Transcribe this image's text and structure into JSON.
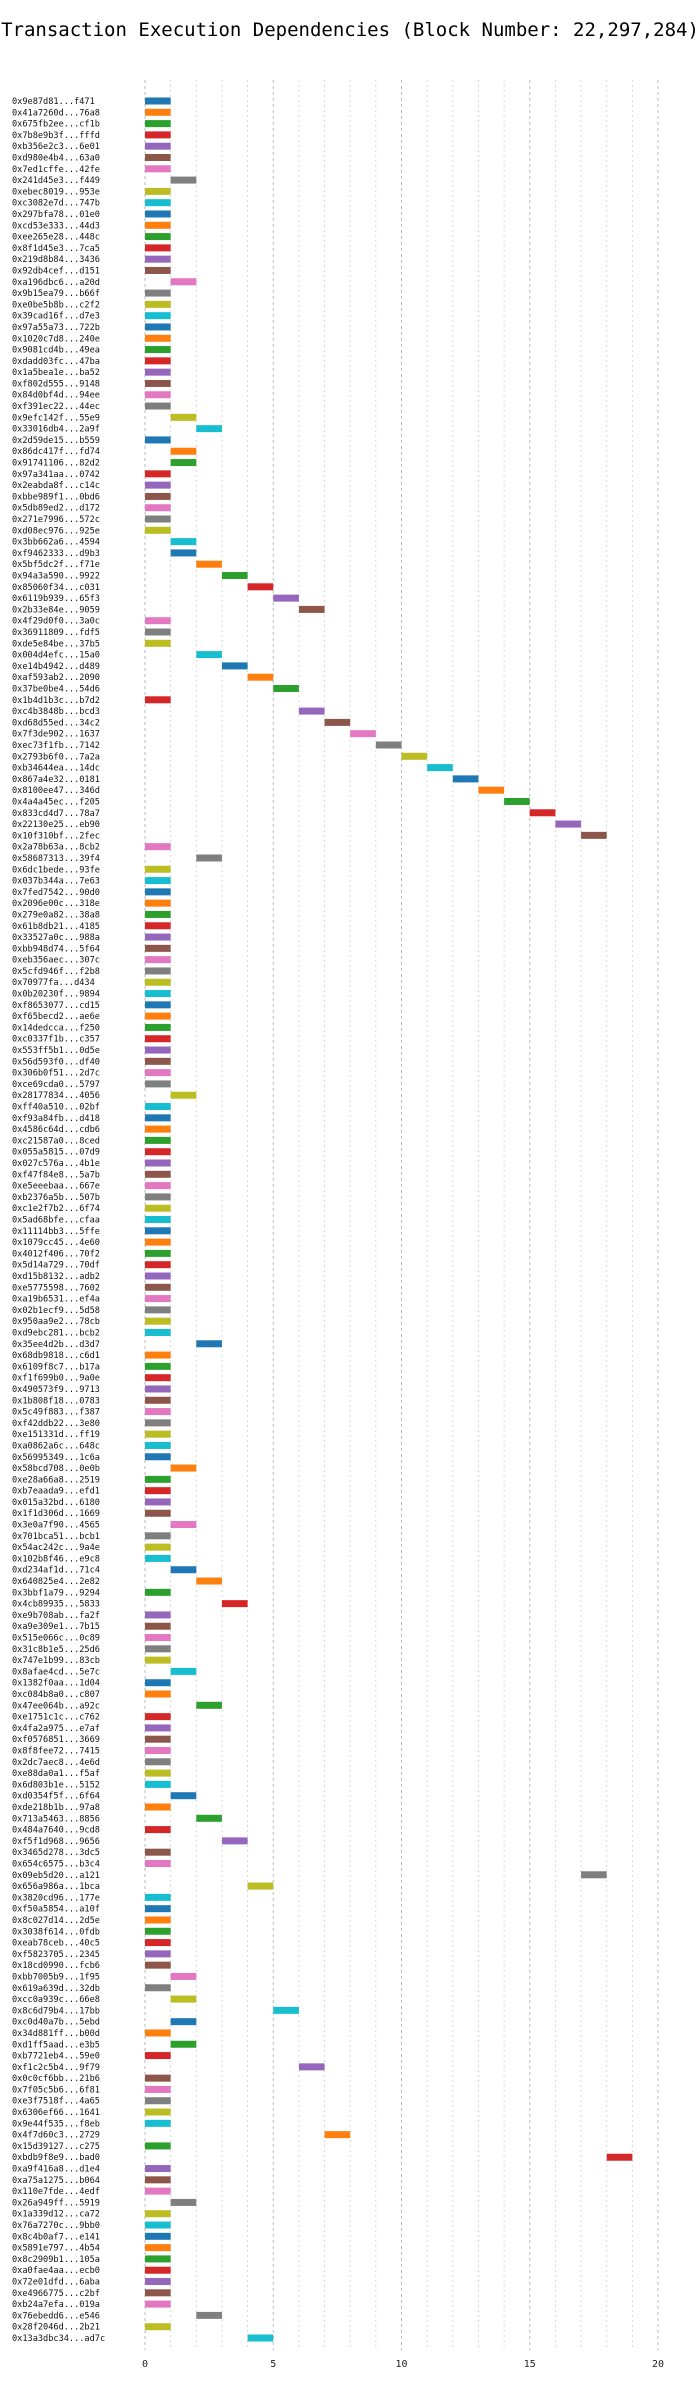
{
  "chart_data": {
    "type": "bar",
    "orientation": "horizontal-gantt",
    "title": "Transaction Execution Dependencies (Block Number: 22,297,284)",
    "xlabel": "",
    "ylabel": "",
    "xlim": [
      0,
      20
    ],
    "xticks": [
      0,
      5,
      10,
      15,
      20
    ],
    "grid": true,
    "palette": [
      "#1f77b4",
      "#ff7f0e",
      "#2ca02c",
      "#d62728",
      "#9467bd",
      "#8c564b",
      "#e377c2",
      "#7f7f7f",
      "#bcbd22",
      "#17becf"
    ],
    "transactions": [
      {
        "label": "0x9e87d81...f471",
        "start": 0,
        "color": 0
      },
      {
        "label": "0x41a7260d...76a8",
        "start": 0,
        "color": 1
      },
      {
        "label": "0x675fb2ee...cf1b",
        "start": 0,
        "color": 2
      },
      {
        "label": "0x7b8e9b3f...fffd",
        "start": 0,
        "color": 3
      },
      {
        "label": "0xb356e2c3...6e01",
        "start": 0,
        "color": 4
      },
      {
        "label": "0xd980e4b4...63a0",
        "start": 0,
        "color": 5
      },
      {
        "label": "0x7ed1cffe...42fe",
        "start": 0,
        "color": 6
      },
      {
        "label": "0x241d45e3...f449",
        "start": 1,
        "color": 7
      },
      {
        "label": "0xebec8019...953e",
        "start": 0,
        "color": 8
      },
      {
        "label": "0xc3082e7d...747b",
        "start": 0,
        "color": 9
      },
      {
        "label": "0x297bfa78...01e0",
        "start": 0,
        "color": 0
      },
      {
        "label": "0xcd53e333...44d3",
        "start": 0,
        "color": 1
      },
      {
        "label": "0xee265e28...448c",
        "start": 0,
        "color": 2
      },
      {
        "label": "0x8f1d45e3...7ca5",
        "start": 0,
        "color": 3
      },
      {
        "label": "0x219d8b84...3436",
        "start": 0,
        "color": 4
      },
      {
        "label": "0x92db4cef...d151",
        "start": 0,
        "color": 5
      },
      {
        "label": "0xa196dbc6...a20d",
        "start": 1,
        "color": 6
      },
      {
        "label": "0x9b15ea79...b66f",
        "start": 0,
        "color": 7
      },
      {
        "label": "0xe0be5b8b...c2f2",
        "start": 0,
        "color": 8
      },
      {
        "label": "0x39cad16f...d7e3",
        "start": 0,
        "color": 9
      },
      {
        "label": "0x97a55a73...722b",
        "start": 0,
        "color": 0
      },
      {
        "label": "0x1020c7d8...240e",
        "start": 0,
        "color": 1
      },
      {
        "label": "0x9081cd4b...49ea",
        "start": 0,
        "color": 2
      },
      {
        "label": "0xdadd03fc...47ba",
        "start": 0,
        "color": 3
      },
      {
        "label": "0x1a5bea1e...ba52",
        "start": 0,
        "color": 4
      },
      {
        "label": "0xf802d555...9148",
        "start": 0,
        "color": 5
      },
      {
        "label": "0x84d0bf4d...94ee",
        "start": 0,
        "color": 6
      },
      {
        "label": "0xf391ec22...44ec",
        "start": 0,
        "color": 7
      },
      {
        "label": "0x9efc142f...55e9",
        "start": 1,
        "color": 8
      },
      {
        "label": "0x33016db4...2a9f",
        "start": 2,
        "color": 9
      },
      {
        "label": "0x2d59de15...b559",
        "start": 0,
        "color": 0
      },
      {
        "label": "0x86dc417f...fd74",
        "start": 1,
        "color": 1
      },
      {
        "label": "0x91741106...82d2",
        "start": 1,
        "color": 2
      },
      {
        "label": "0x97a341aa...0742",
        "start": 0,
        "color": 3
      },
      {
        "label": "0x2eabda8f...c14c",
        "start": 0,
        "color": 4
      },
      {
        "label": "0xbbe989f1...0bd6",
        "start": 0,
        "color": 5
      },
      {
        "label": "0x5db89ed2...d172",
        "start": 0,
        "color": 6
      },
      {
        "label": "0x271e7996...572c",
        "start": 0,
        "color": 7
      },
      {
        "label": "0xd08ec976...925e",
        "start": 0,
        "color": 8
      },
      {
        "label": "0x3bb662a6...4594",
        "start": 1,
        "color": 9
      },
      {
        "label": "0xf9462333...d9b3",
        "start": 1,
        "color": 0
      },
      {
        "label": "0x5bf5dc2f...f71e",
        "start": 2,
        "color": 1
      },
      {
        "label": "0x94a3a590...9922",
        "start": 3,
        "color": 2
      },
      {
        "label": "0x85060f34...c031",
        "start": 4,
        "color": 3
      },
      {
        "label": "0x6119b939...65f3",
        "start": 5,
        "color": 4
      },
      {
        "label": "0x2b33e84e...9059",
        "start": 6,
        "color": 5
      },
      {
        "label": "0x4f29d0f0...3a0c",
        "start": 0,
        "color": 6
      },
      {
        "label": "0x36911809...fdf5",
        "start": 0,
        "color": 7
      },
      {
        "label": "0xde5e84be...37b5",
        "start": 0,
        "color": 8
      },
      {
        "label": "0x004d4efc...15a0",
        "start": 2,
        "color": 9
      },
      {
        "label": "0xe14b4942...d489",
        "start": 3,
        "color": 0
      },
      {
        "label": "0xaf593ab2...2090",
        "start": 4,
        "color": 1
      },
      {
        "label": "0x37be0be4...54d6",
        "start": 5,
        "color": 2
      },
      {
        "label": "0x1b4d1b3c...b7d2",
        "start": 0,
        "color": 3
      },
      {
        "label": "0xc4b3848b...bcd3",
        "start": 6,
        "color": 4
      },
      {
        "label": "0xd68d55ed...34c2",
        "start": 7,
        "color": 5
      },
      {
        "label": "0x7f3de902...1637",
        "start": 8,
        "color": 6
      },
      {
        "label": "0xec73f1fb...7142",
        "start": 9,
        "color": 7
      },
      {
        "label": "0x2793b6f0...7a2a",
        "start": 10,
        "color": 8
      },
      {
        "label": "0xb34644ea...14dc",
        "start": 11,
        "color": 9
      },
      {
        "label": "0x867a4e32...0181",
        "start": 12,
        "color": 0
      },
      {
        "label": "0x8100ee47...346d",
        "start": 13,
        "color": 1
      },
      {
        "label": "0x4a4a45ec...f205",
        "start": 14,
        "color": 2
      },
      {
        "label": "0x833cd4d7...78a7",
        "start": 15,
        "color": 3
      },
      {
        "label": "0x22130e25...eb90",
        "start": 16,
        "color": 4
      },
      {
        "label": "0x10f310bf...2fec",
        "start": 17,
        "color": 5
      },
      {
        "label": "0x2a78b63a...8cb2",
        "start": 0,
        "color": 6
      },
      {
        "label": "0x58687313...39f4",
        "start": 2,
        "color": 7
      },
      {
        "label": "0x6dc1bede...93fe",
        "start": 0,
        "color": 8
      },
      {
        "label": "0x037b344a...7e63",
        "start": 0,
        "color": 9
      },
      {
        "label": "0x7fed7542...90d0",
        "start": 0,
        "color": 0
      },
      {
        "label": "0x2096e00c...318e",
        "start": 0,
        "color": 1
      },
      {
        "label": "0x279e0a82...38a8",
        "start": 0,
        "color": 2
      },
      {
        "label": "0x61b8db21...4185",
        "start": 0,
        "color": 3
      },
      {
        "label": "0x33527a0c...988a",
        "start": 0,
        "color": 4
      },
      {
        "label": "0xbb948d74...5f64",
        "start": 0,
        "color": 5
      },
      {
        "label": "0xeb356aec...307c",
        "start": 0,
        "color": 6
      },
      {
        "label": "0x5cfd946f...f2b8",
        "start": 0,
        "color": 7
      },
      {
        "label": "0x70977fa...d434",
        "start": 0,
        "color": 8
      },
      {
        "label": "0x0b20230f...9894",
        "start": 0,
        "color": 9
      },
      {
        "label": "0xf8653077...cd15",
        "start": 0,
        "color": 0
      },
      {
        "label": "0xf65becd2...ae6e",
        "start": 0,
        "color": 1
      },
      {
        "label": "0x14dedcca...f250",
        "start": 0,
        "color": 2
      },
      {
        "label": "0xc0337f1b...c357",
        "start": 0,
        "color": 3
      },
      {
        "label": "0x553ff5b1...0d5e",
        "start": 0,
        "color": 4
      },
      {
        "label": "0x56d593f0...df40",
        "start": 0,
        "color": 5
      },
      {
        "label": "0x306b0f51...2d7c",
        "start": 0,
        "color": 6
      },
      {
        "label": "0xce69cda0...5797",
        "start": 0,
        "color": 7
      },
      {
        "label": "0x28177834...4056",
        "start": 1,
        "color": 8
      },
      {
        "label": "0xff40a510...02bf",
        "start": 0,
        "color": 9
      },
      {
        "label": "0xf93a84fb...d418",
        "start": 0,
        "color": 0
      },
      {
        "label": "0x4586c64d...cdb6",
        "start": 0,
        "color": 1
      },
      {
        "label": "0xc21587a0...8ced",
        "start": 0,
        "color": 2
      },
      {
        "label": "0x055a5815...07d9",
        "start": 0,
        "color": 3
      },
      {
        "label": "0x027c576a...4b1e",
        "start": 0,
        "color": 4
      },
      {
        "label": "0xf47f84e8...5a7b",
        "start": 0,
        "color": 5
      },
      {
        "label": "0xe5eeebaa...667e",
        "start": 0,
        "color": 6
      },
      {
        "label": "0xb2376a5b...507b",
        "start": 0,
        "color": 7
      },
      {
        "label": "0xc1e2f7b2...6f74",
        "start": 0,
        "color": 8
      },
      {
        "label": "0x5ad68bfe...cfaa",
        "start": 0,
        "color": 9
      },
      {
        "label": "0x11114bb3...5ffe",
        "start": 0,
        "color": 0
      },
      {
        "label": "0x1079cc45...4e60",
        "start": 0,
        "color": 1
      },
      {
        "label": "0x4012f406...70f2",
        "start": 0,
        "color": 2
      },
      {
        "label": "0x5d14a729...70df",
        "start": 0,
        "color": 3
      },
      {
        "label": "0xd15b8132...adb2",
        "start": 0,
        "color": 4
      },
      {
        "label": "0xe5775598...7602",
        "start": 0,
        "color": 5
      },
      {
        "label": "0xa19b6531...ef4a",
        "start": 0,
        "color": 6
      },
      {
        "label": "0x02b1ecf9...5d58",
        "start": 0,
        "color": 7
      },
      {
        "label": "0x950aa9e2...78cb",
        "start": 0,
        "color": 8
      },
      {
        "label": "0xd9ebc281...bcb2",
        "start": 0,
        "color": 9
      },
      {
        "label": "0x35ee4d2b...d3d7",
        "start": 2,
        "color": 0
      },
      {
        "label": "0x68db9818...c6d1",
        "start": 0,
        "color": 1
      },
      {
        "label": "0x6109f8c7...b17a",
        "start": 0,
        "color": 2
      },
      {
        "label": "0xf1f699b0...9a0e",
        "start": 0,
        "color": 3
      },
      {
        "label": "0x490573f9...9713",
        "start": 0,
        "color": 4
      },
      {
        "label": "0x1b808f18...0783",
        "start": 0,
        "color": 5
      },
      {
        "label": "0x5c49f883...f387",
        "start": 0,
        "color": 6
      },
      {
        "label": "0xf42ddb22...3e80",
        "start": 0,
        "color": 7
      },
      {
        "label": "0xe151331d...ff19",
        "start": 0,
        "color": 8
      },
      {
        "label": "0xa0862a6c...648c",
        "start": 0,
        "color": 9
      },
      {
        "label": "0x56995349...1c6a",
        "start": 0,
        "color": 0
      },
      {
        "label": "0x58bcd708...0e0b",
        "start": 1,
        "color": 1
      },
      {
        "label": "0xe28a66a8...2519",
        "start": 0,
        "color": 2
      },
      {
        "label": "0xb7eaada9...efd1",
        "start": 0,
        "color": 3
      },
      {
        "label": "0x015a32bd...6180",
        "start": 0,
        "color": 4
      },
      {
        "label": "0x1f1d306d...1669",
        "start": 0,
        "color": 5
      },
      {
        "label": "0x3e0a7f90...4565",
        "start": 1,
        "color": 6
      },
      {
        "label": "0x701bca51...bcb1",
        "start": 0,
        "color": 7
      },
      {
        "label": "0x54ac242c...9a4e",
        "start": 0,
        "color": 8
      },
      {
        "label": "0x102b8f46...e9c8",
        "start": 0,
        "color": 9
      },
      {
        "label": "0xd234af1d...71c4",
        "start": 1,
        "color": 0
      },
      {
        "label": "0x640825e4...2e82",
        "start": 2,
        "color": 1
      },
      {
        "label": "0x3bbf1a79...9294",
        "start": 0,
        "color": 2
      },
      {
        "label": "0x4cb89935...5833",
        "start": 3,
        "color": 3
      },
      {
        "label": "0xe9b708ab...fa2f",
        "start": 0,
        "color": 4
      },
      {
        "label": "0xa9e309e1...7b15",
        "start": 0,
        "color": 5
      },
      {
        "label": "0x515e066c...0c89",
        "start": 0,
        "color": 6
      },
      {
        "label": "0x31c8b1e5...25d6",
        "start": 0,
        "color": 7
      },
      {
        "label": "0x747e1b99...83cb",
        "start": 0,
        "color": 8
      },
      {
        "label": "0x8afae4cd...5e7c",
        "start": 1,
        "color": 9
      },
      {
        "label": "0x1382f0aa...1d04",
        "start": 0,
        "color": 0
      },
      {
        "label": "0xc084b8a0...c807",
        "start": 0,
        "color": 1
      },
      {
        "label": "0x47ee064b...a92c",
        "start": 2,
        "color": 2
      },
      {
        "label": "0xe1751c1c...c762",
        "start": 0,
        "color": 3
      },
      {
        "label": "0x4fa2a975...e7af",
        "start": 0,
        "color": 4
      },
      {
        "label": "0xf0576851...3669",
        "start": 0,
        "color": 5
      },
      {
        "label": "0x8f8fee72...7415",
        "start": 0,
        "color": 6
      },
      {
        "label": "0x2dc7aec8...4e6d",
        "start": 0,
        "color": 7
      },
      {
        "label": "0xe88da0a1...f5af",
        "start": 0,
        "color": 8
      },
      {
        "label": "0x6d803b1e...5152",
        "start": 0,
        "color": 9
      },
      {
        "label": "0xd0354f5f...6f64",
        "start": 1,
        "color": 0
      },
      {
        "label": "0xde218b1b...97a8",
        "start": 0,
        "color": 1
      },
      {
        "label": "0x713a5463...8856",
        "start": 2,
        "color": 2
      },
      {
        "label": "0x484a7640...9cd8",
        "start": 0,
        "color": 3
      },
      {
        "label": "0xf5f1d968...9656",
        "start": 3,
        "color": 4
      },
      {
        "label": "0x3465d278...3dc5",
        "start": 0,
        "color": 5
      },
      {
        "label": "0x654c6575...b3c4",
        "start": 0,
        "color": 6
      },
      {
        "label": "0x09eb5d20...a121",
        "start": 17,
        "color": 7
      },
      {
        "label": "0x656a986a...1bca",
        "start": 4,
        "color": 8
      },
      {
        "label": "0x3820cd96...177e",
        "start": 0,
        "color": 9
      },
      {
        "label": "0xf50a5854...a10f",
        "start": 0,
        "color": 0
      },
      {
        "label": "0x8c027d14...2d5e",
        "start": 0,
        "color": 1
      },
      {
        "label": "0x3038f614...0fdb",
        "start": 0,
        "color": 2
      },
      {
        "label": "0xeab78ceb...40c5",
        "start": 0,
        "color": 3
      },
      {
        "label": "0xf5823705...2345",
        "start": 0,
        "color": 4
      },
      {
        "label": "0x18cd0990...fcb6",
        "start": 0,
        "color": 5
      },
      {
        "label": "0xbb7005b9...1f95",
        "start": 1,
        "color": 6
      },
      {
        "label": "0x619a639d...32db",
        "start": 0,
        "color": 7
      },
      {
        "label": "0xcc0a939c...66e8",
        "start": 1,
        "color": 8
      },
      {
        "label": "0x8c6d79b4...17bb",
        "start": 5,
        "color": 9
      },
      {
        "label": "0xc0d40a7b...5ebd",
        "start": 1,
        "color": 0
      },
      {
        "label": "0x34d881ff...b00d",
        "start": 0,
        "color": 1
      },
      {
        "label": "0xd1ff5aad...e3b5",
        "start": 1,
        "color": 2
      },
      {
        "label": "0xb7721eb4...59e0",
        "start": 0,
        "color": 3
      },
      {
        "label": "0xf1c2c5b4...9f79",
        "start": 6,
        "color": 4
      },
      {
        "label": "0x0c0cf6bb...21b6",
        "start": 0,
        "color": 5
      },
      {
        "label": "0x7f05c5b6...6f81",
        "start": 0,
        "color": 6
      },
      {
        "label": "0xe3f7518f...4a65",
        "start": 0,
        "color": 7
      },
      {
        "label": "0x6306ef66...1641",
        "start": 0,
        "color": 8
      },
      {
        "label": "0x9e44f535...f8eb",
        "start": 0,
        "color": 9
      },
      {
        "label": "0x4f7d60c3...2729",
        "start": 7,
        "color": 1
      },
      {
        "label": "0x15d39127...c275",
        "start": 0,
        "color": 2
      },
      {
        "label": "0xbdb9f8e9...bad0",
        "start": 18,
        "color": 3
      },
      {
        "label": "0xa9f416a8...d1e4",
        "start": 0,
        "color": 4
      },
      {
        "label": "0xa75a1275...b064",
        "start": 0,
        "color": 5
      },
      {
        "label": "0x110e7fde...4edf",
        "start": 0,
        "color": 6
      },
      {
        "label": "0x26a949ff...5919",
        "start": 1,
        "color": 7
      },
      {
        "label": "0x1a339d12...ca72",
        "start": 0,
        "color": 8
      },
      {
        "label": "0x76a7270c...9bb0",
        "start": 0,
        "color": 9
      },
      {
        "label": "0x8c4b0af7...e141",
        "start": 0,
        "color": 0
      },
      {
        "label": "0x5891e797...4b54",
        "start": 0,
        "color": 1
      },
      {
        "label": "0x8c2909b1...105a",
        "start": 0,
        "color": 2
      },
      {
        "label": "0xa0fae4aa...ecb0",
        "start": 0,
        "color": 3
      },
      {
        "label": "0x72e01dfd...6aba",
        "start": 0,
        "color": 4
      },
      {
        "label": "0xe4966775...c2bf",
        "start": 0,
        "color": 5
      },
      {
        "label": "0xb24a7efa...019a",
        "start": 0,
        "color": 6
      },
      {
        "label": "0x76ebedd6...e546",
        "start": 2,
        "color": 7
      },
      {
        "label": "0x28f2046d...2b21",
        "start": 0,
        "color": 8
      },
      {
        "label": "0x13a3dbc34...ad7c",
        "start": 4,
        "color": 9
      }
    ]
  }
}
